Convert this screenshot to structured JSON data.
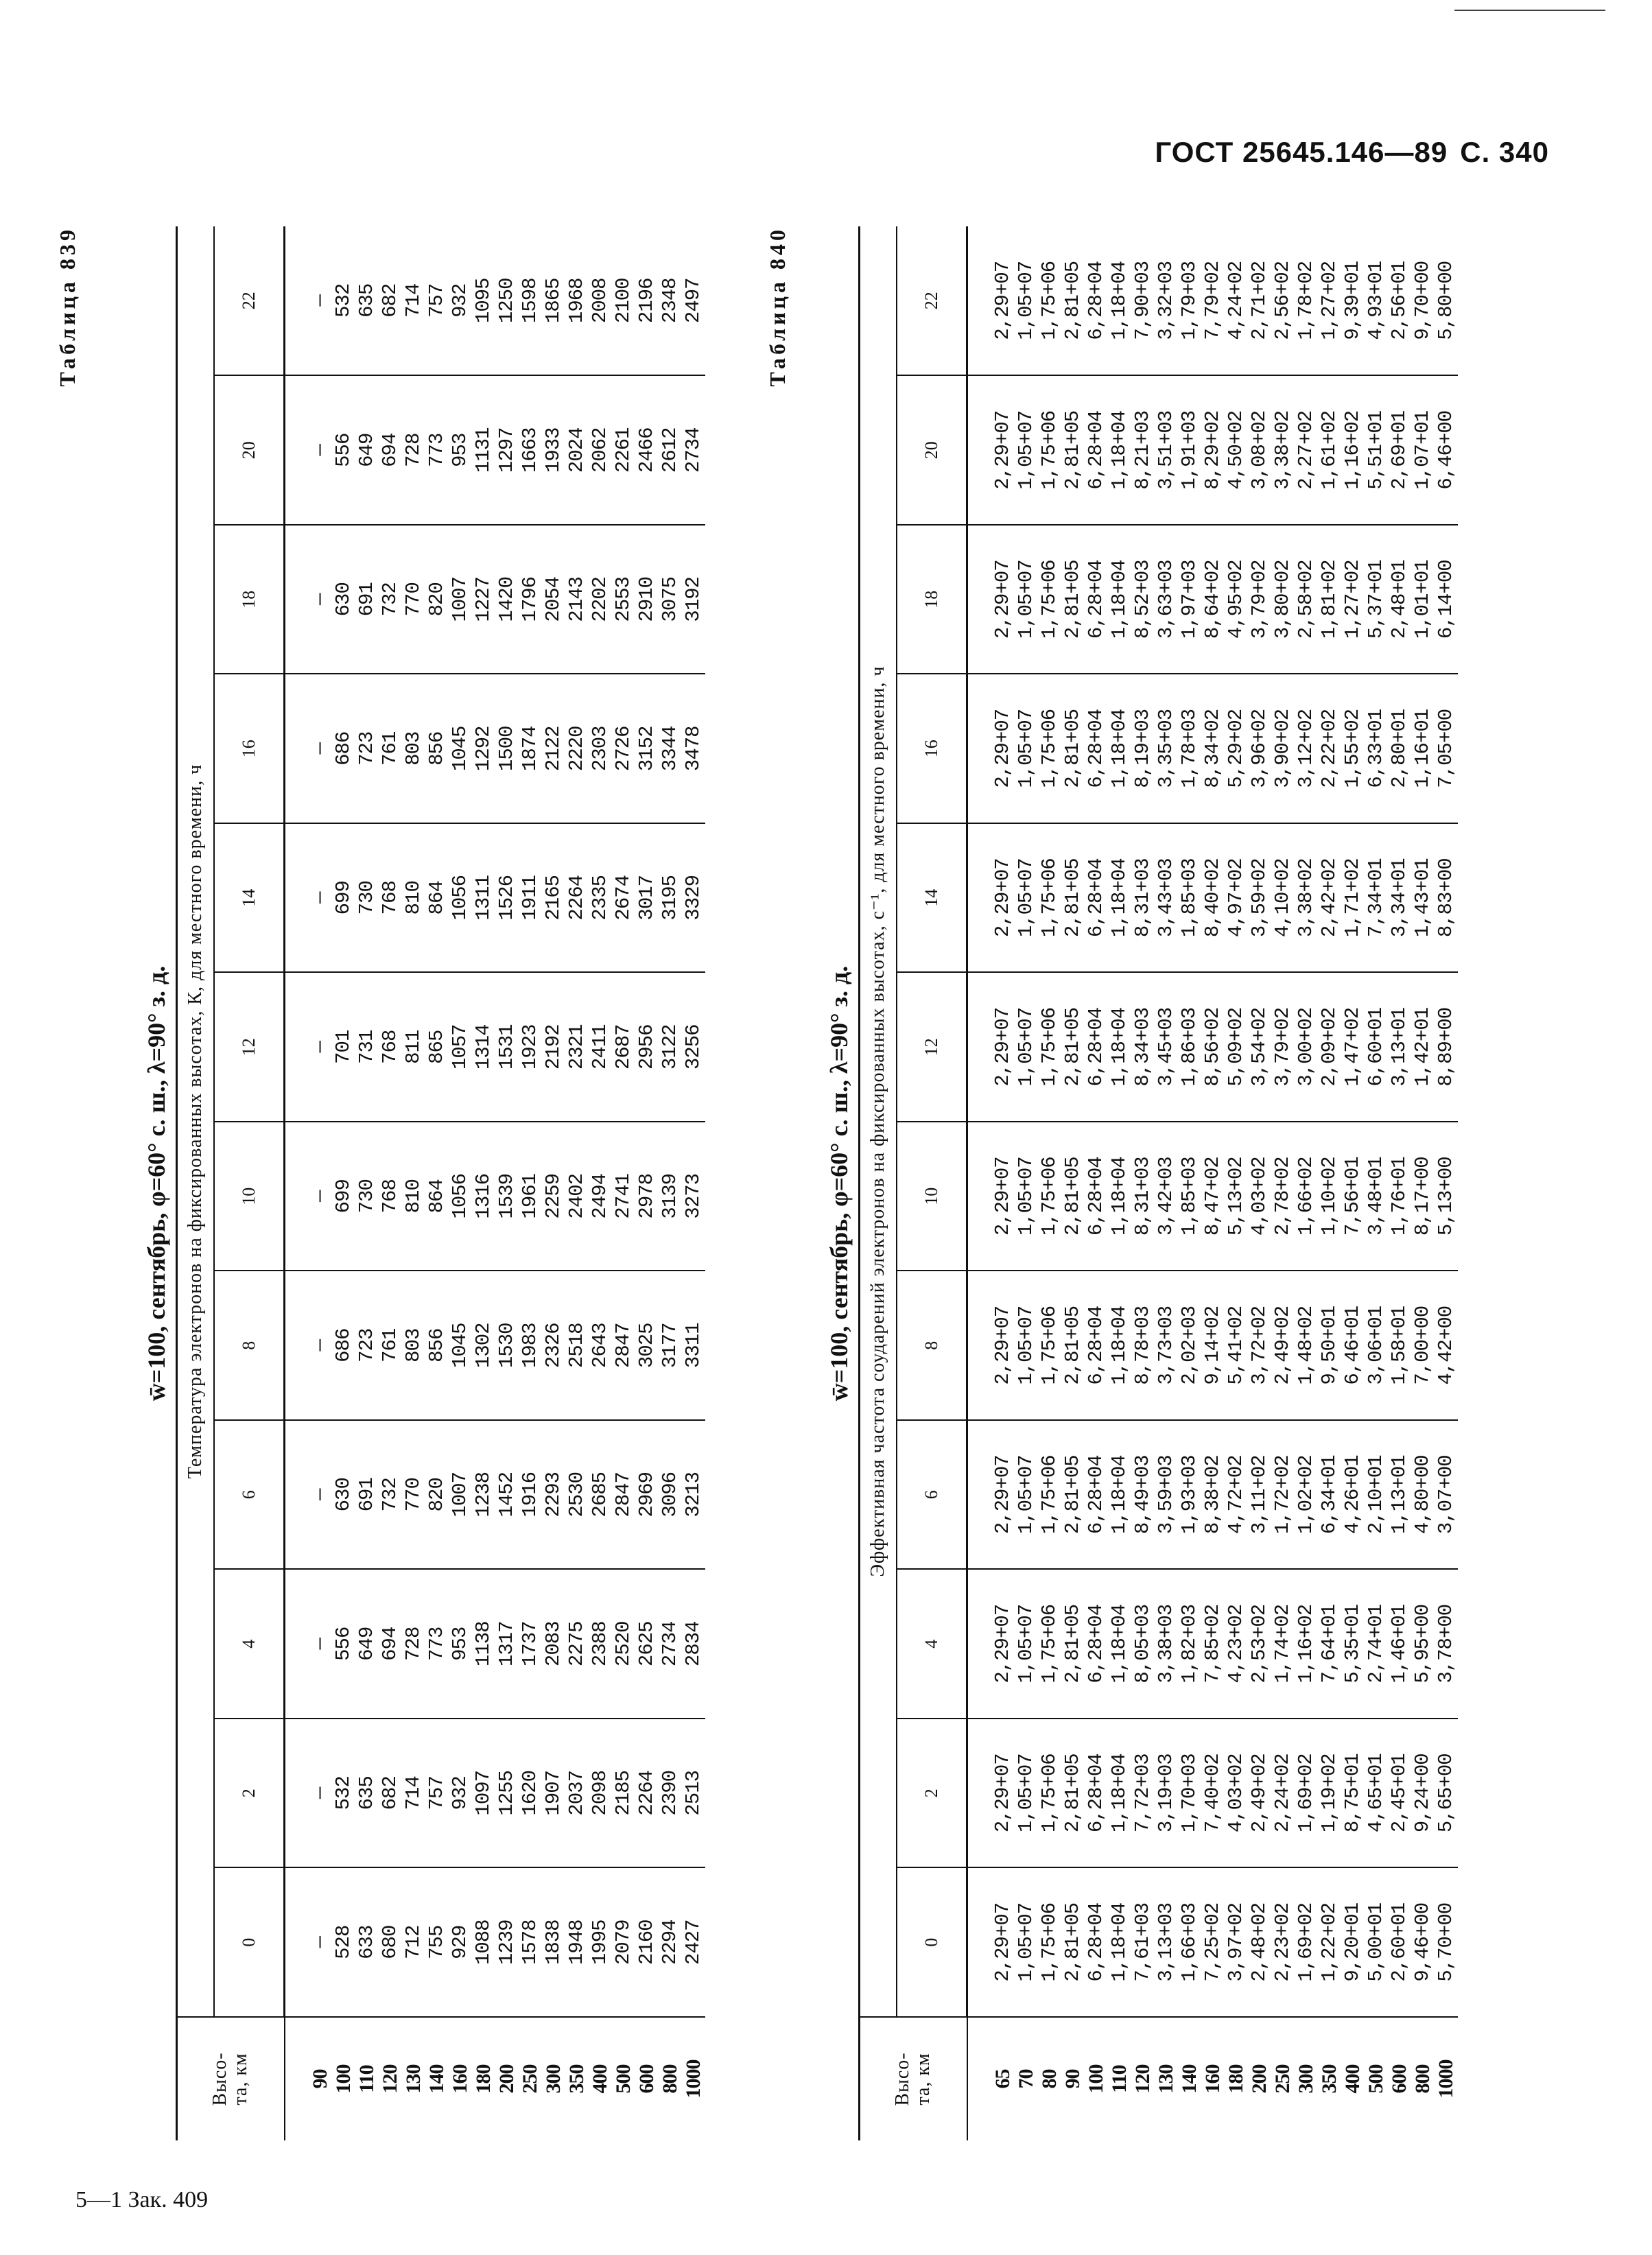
{
  "header": {
    "standard": "ГОСТ 25645.146—89",
    "page": "С. 340"
  },
  "footer": "5—1 Зак. 409",
  "tables": [
    {
      "label": "Таблица 839",
      "title": "w̄=100, сентябрь, φ=60° с. ш., λ=90° з. д.",
      "caption": "Температура электронов на фиксированных высотах, К, для местного времени, ч",
      "alt_header": "Высо-\nта, км",
      "hours": [
        "0",
        "2",
        "4",
        "6",
        "8",
        "10",
        "12",
        "14",
        "16",
        "18",
        "20",
        "22"
      ],
      "altitudes": [
        "90",
        "100",
        "110",
        "120",
        "130",
        "140",
        "160",
        "180",
        "200",
        "250",
        "300",
        "350",
        "400",
        "500",
        "600",
        "800",
        "1000"
      ],
      "columns": [
        [
          "—",
          "528",
          "633",
          "680",
          "712",
          "755",
          "929",
          "1088",
          "1239",
          "1578",
          "1838",
          "1948",
          "1995",
          "2079",
          "2160",
          "2294",
          "2427"
        ],
        [
          "—",
          "532",
          "635",
          "682",
          "714",
          "757",
          "932",
          "1097",
          "1255",
          "1620",
          "1907",
          "2037",
          "2098",
          "2185",
          "2264",
          "2390",
          "2513"
        ],
        [
          "—",
          "556",
          "649",
          "694",
          "728",
          "773",
          "953",
          "1138",
          "1317",
          "1737",
          "2083",
          "2275",
          "2388",
          "2520",
          "2625",
          "2734",
          "2834"
        ],
        [
          "—",
          "630",
          "691",
          "732",
          "770",
          "820",
          "1007",
          "1238",
          "1452",
          "1916",
          "2293",
          "2530",
          "2685",
          "2847",
          "2969",
          "3096",
          "3213"
        ],
        [
          "—",
          "686",
          "723",
          "761",
          "803",
          "856",
          "1045",
          "1302",
          "1530",
          "1983",
          "2326",
          "2518",
          "2643",
          "2847",
          "3025",
          "3177",
          "3311"
        ],
        [
          "—",
          "699",
          "730",
          "768",
          "810",
          "864",
          "1056",
          "1316",
          "1539",
          "1961",
          "2259",
          "2402",
          "2494",
          "2741",
          "2978",
          "3139",
          "3273"
        ],
        [
          "—",
          "701",
          "731",
          "768",
          "811",
          "865",
          "1057",
          "1314",
          "1531",
          "1923",
          "2192",
          "2321",
          "2411",
          "2687",
          "2956",
          "3122",
          "3256"
        ],
        [
          "—",
          "699",
          "730",
          "768",
          "810",
          "864",
          "1056",
          "1311",
          "1526",
          "1911",
          "2165",
          "2264",
          "2335",
          "2674",
          "3017",
          "3195",
          "3329"
        ],
        [
          "—",
          "686",
          "723",
          "761",
          "803",
          "856",
          "1045",
          "1292",
          "1500",
          "1874",
          "2122",
          "2220",
          "2303",
          "2726",
          "3152",
          "3344",
          "3478"
        ],
        [
          "—",
          "630",
          "691",
          "732",
          "770",
          "820",
          "1007",
          "1227",
          "1420",
          "1796",
          "2054",
          "2143",
          "2202",
          "2553",
          "2910",
          "3075",
          "3192"
        ],
        [
          "—",
          "556",
          "649",
          "694",
          "728",
          "773",
          "953",
          "1131",
          "1297",
          "1663",
          "1933",
          "2024",
          "2062",
          "2261",
          "2466",
          "2612",
          "2734"
        ],
        [
          "—",
          "532",
          "635",
          "682",
          "714",
          "757",
          "932",
          "1095",
          "1250",
          "1598",
          "1865",
          "1968",
          "2008",
          "2100",
          "2196",
          "2348",
          "2497"
        ]
      ]
    },
    {
      "label": "Таблица 840",
      "title": "w̄=100, сентябрь, φ=60° с. ш., λ=90° з. д.",
      "caption": "Эффективная частота соударений электронов на фиксированных высотах, с⁻¹, для местного времени, ч",
      "alt_header": "Высо-\nта, км",
      "hours": [
        "0",
        "2",
        "4",
        "6",
        "8",
        "10",
        "12",
        "14",
        "16",
        "18",
        "20",
        "22"
      ],
      "altitudes": [
        "65",
        "70",
        "80",
        "90",
        "100",
        "110",
        "120",
        "130",
        "140",
        "160",
        "180",
        "200",
        "250",
        "300",
        "350",
        "400",
        "500",
        "600",
        "800",
        "1000"
      ],
      "columns": [
        [
          "2,29+07",
          "1,05+07",
          "1,75+06",
          "2,81+05",
          "6,28+04",
          "1,18+04",
          "7,61+03",
          "3,13+03",
          "1,66+03",
          "7,25+02",
          "3,97+02",
          "2,48+02",
          "2,23+02",
          "1,69+02",
          "1,22+02",
          "9,20+01",
          "5,00+01",
          "2,60+01",
          "9,46+00",
          "5,70+00"
        ],
        [
          "2,29+07",
          "1,05+07",
          "1,75+06",
          "2,81+05",
          "6,28+04",
          "1,18+04",
          "7,72+03",
          "3,19+03",
          "1,70+03",
          "7,40+02",
          "4,03+02",
          "2,49+02",
          "2,24+02",
          "1,69+02",
          "1,19+02",
          "8,75+01",
          "4,65+01",
          "2,45+01",
          "9,24+00",
          "5,65+00"
        ],
        [
          "2,29+07",
          "1,05+07",
          "1,75+06",
          "2,81+05",
          "6,28+04",
          "1,18+04",
          "8,05+03",
          "3,38+03",
          "1,82+03",
          "7,85+02",
          "4,23+02",
          "2,53+02",
          "1,74+02",
          "1,16+02",
          "7,64+01",
          "5,35+01",
          "2,74+01",
          "1,46+01",
          "5,95+00",
          "3,78+00"
        ],
        [
          "2,29+07",
          "1,05+07",
          "1,75+06",
          "2,81+05",
          "6,28+04",
          "1,18+04",
          "8,49+03",
          "3,59+03",
          "1,93+03",
          "8,38+02",
          "4,72+02",
          "3,11+02",
          "1,72+02",
          "1,02+02",
          "6,34+01",
          "4,26+01",
          "2,10+01",
          "1,13+01",
          "4,80+00",
          "3,07+00"
        ],
        [
          "2,29+07",
          "1,05+07",
          "1,75+06",
          "2,81+05",
          "6,28+04",
          "1,18+04",
          "8,78+03",
          "3,73+03",
          "2,02+03",
          "9,14+02",
          "5,41+02",
          "3,72+02",
          "2,49+02",
          "1,48+02",
          "9,50+01",
          "6,46+01",
          "3,06+01",
          "1,58+01",
          "7,00+00",
          "4,42+00"
        ],
        [
          "2,29+07",
          "1,05+07",
          "1,75+06",
          "2,81+05",
          "6,28+04",
          "1,18+04",
          "8,31+03",
          "3,42+03",
          "1,85+03",
          "8,47+02",
          "5,13+02",
          "4,03+02",
          "2,78+02",
          "1,66+02",
          "1,10+02",
          "7,56+01",
          "3,48+01",
          "1,76+01",
          "8,17+00",
          "5,13+00"
        ],
        [
          "2,29+07",
          "1,05+07",
          "1,75+06",
          "2,81+05",
          "6,28+04",
          "1,18+04",
          "8,34+03",
          "3,45+03",
          "1,86+03",
          "8,56+02",
          "5,09+02",
          "3,54+02",
          "3,79+02",
          "3,00+02",
          "2,09+02",
          "1,47+02",
          "6,60+01",
          "3,13+01",
          "1,42+01",
          "8,89+00"
        ],
        [
          "2,29+07",
          "1,05+07",
          "1,75+06",
          "2,81+05",
          "6,28+04",
          "1,18+04",
          "8,31+03",
          "3,43+03",
          "1,85+03",
          "8,40+02",
          "4,97+02",
          "3,59+02",
          "4,10+02",
          "3,38+02",
          "2,42+02",
          "1,71+02",
          "7,34+01",
          "3,34+01",
          "1,43+01",
          "8,83+00"
        ],
        [
          "2,29+07",
          "1,05+07",
          "1,75+06",
          "2,81+05",
          "6,28+04",
          "1,18+04",
          "8,19+03",
          "3,35+03",
          "1,78+03",
          "8,34+02",
          "5,29+02",
          "3,96+02",
          "3,90+02",
          "3,12+02",
          "2,22+02",
          "1,55+02",
          "6,33+01",
          "2,80+01",
          "1,16+01",
          "7,05+00"
        ],
        [
          "2,29+07",
          "1,05+07",
          "1,75+06",
          "2,81+05",
          "6,28+04",
          "1,18+04",
          "8,52+03",
          "3,63+03",
          "1,97+03",
          "8,64+02",
          "4,95+02",
          "3,79+02",
          "3,80+02",
          "2,58+02",
          "1,81+02",
          "1,27+02",
          "5,37+01",
          "2,48+01",
          "1,01+01",
          "6,14+00"
        ],
        [
          "2,29+07",
          "1,05+07",
          "1,75+06",
          "2,81+05",
          "6,28+04",
          "1,18+04",
          "8,21+03",
          "3,51+03",
          "1,91+03",
          "8,29+02",
          "4,50+02",
          "3,08+02",
          "3,38+02",
          "2,27+02",
          "1,61+02",
          "1,16+02",
          "5,51+01",
          "2,69+01",
          "1,07+01",
          "6,46+00"
        ],
        [
          "2,29+07",
          "1,05+07",
          "1,75+06",
          "2,81+05",
          "6,28+04",
          "1,18+04",
          "7,90+03",
          "3,32+03",
          "1,79+03",
          "7,79+02",
          "4,24+02",
          "2,71+02",
          "2,56+02",
          "1,78+02",
          "1,27+02",
          "9,39+01",
          "4,93+01",
          "2,56+01",
          "9,70+00",
          "5,80+00"
        ]
      ]
    }
  ]
}
